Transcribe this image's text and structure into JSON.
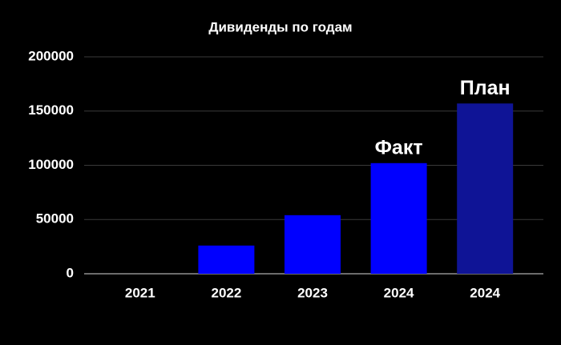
{
  "chart_data": {
    "type": "bar",
    "title": "Дивиденды по годам",
    "categories": [
      "2021",
      "2022",
      "2023",
      "2024",
      "2024"
    ],
    "values": [
      0,
      26000,
      54000,
      102000,
      157000
    ],
    "colors": [
      "#0000ff",
      "#0000ff",
      "#0000ff",
      "#0000ff",
      "#0f1496"
    ],
    "annotations": [
      "Факт",
      "План"
    ],
    "ylim": [
      0,
      200000
    ],
    "yticks": [
      0,
      50000,
      100000,
      150000,
      200000
    ],
    "grid": true
  }
}
